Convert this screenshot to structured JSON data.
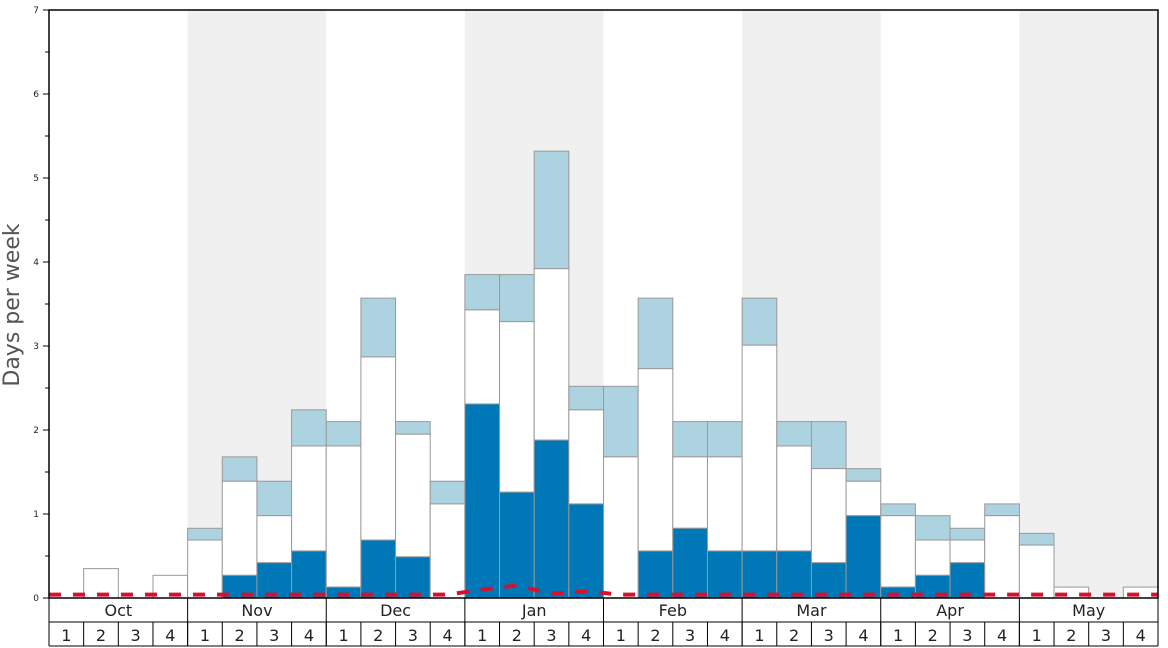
{
  "chart_data": {
    "type": "bar",
    "stacked": true,
    "title": "",
    "xlabel": "",
    "ylabel": "Days per week",
    "ylim": [
      0,
      7
    ],
    "yticks": [
      0,
      1,
      2,
      3,
      4,
      5,
      6,
      7
    ],
    "months": [
      "Oct",
      "Nov",
      "Dec",
      "Jan",
      "Feb",
      "Mar",
      "Apr",
      "May"
    ],
    "week_labels": [
      "1",
      "2",
      "3",
      "4"
    ],
    "shaded_months": [
      "Nov",
      "Jan",
      "Mar",
      "May"
    ],
    "colors": {
      "dark": "#0077b6",
      "white": "#ffffff",
      "light": "#aed3e0",
      "line": "#d7102f",
      "shade": "#f0f0f0"
    },
    "series": [
      {
        "key": "dark",
        "values": [
          0,
          0,
          0,
          0,
          0,
          0.27,
          0.42,
          0.56,
          0.13,
          0.69,
          0.49,
          0,
          2.31,
          1.26,
          1.88,
          1.12,
          0,
          0.56,
          0.83,
          0.56,
          0.56,
          0.56,
          0.42,
          0.98,
          0.13,
          0.27,
          0.42,
          0,
          0,
          0,
          0,
          0
        ]
      },
      {
        "key": "white",
        "cumulative_top": [
          0,
          0.35,
          0,
          0.27,
          0.69,
          1.39,
          0.98,
          1.81,
          1.81,
          2.87,
          1.95,
          1.12,
          3.43,
          3.29,
          3.92,
          2.24,
          1.68,
          2.73,
          1.68,
          1.68,
          3.01,
          1.81,
          1.54,
          1.39,
          0.98,
          0.69,
          0.69,
          0.98,
          0.63,
          0.13,
          0,
          0.13
        ]
      },
      {
        "key": "light",
        "cumulative_top": [
          0,
          0.35,
          0,
          0.27,
          0.83,
          1.68,
          1.39,
          2.24,
          2.1,
          3.57,
          2.1,
          1.39,
          3.85,
          3.85,
          5.32,
          2.52,
          2.52,
          3.57,
          2.1,
          2.1,
          3.57,
          2.1,
          2.1,
          1.54,
          1.12,
          0.98,
          0.83,
          1.12,
          0.77,
          0.13,
          0,
          0.13
        ]
      }
    ],
    "line": {
      "style": "dashed",
      "values": [
        0.04,
        0.04,
        0.04,
        0.04,
        0.04,
        0.04,
        0.04,
        0.04,
        0.04,
        0.04,
        0.04,
        0.04,
        0.1,
        0.15,
        0.05,
        0.08,
        0.04,
        0.04,
        0.04,
        0.04,
        0.04,
        0.04,
        0.04,
        0.04,
        0.04,
        0.04,
        0.04,
        0.04,
        0.04,
        0.04,
        0.04,
        0.04
      ]
    }
  }
}
